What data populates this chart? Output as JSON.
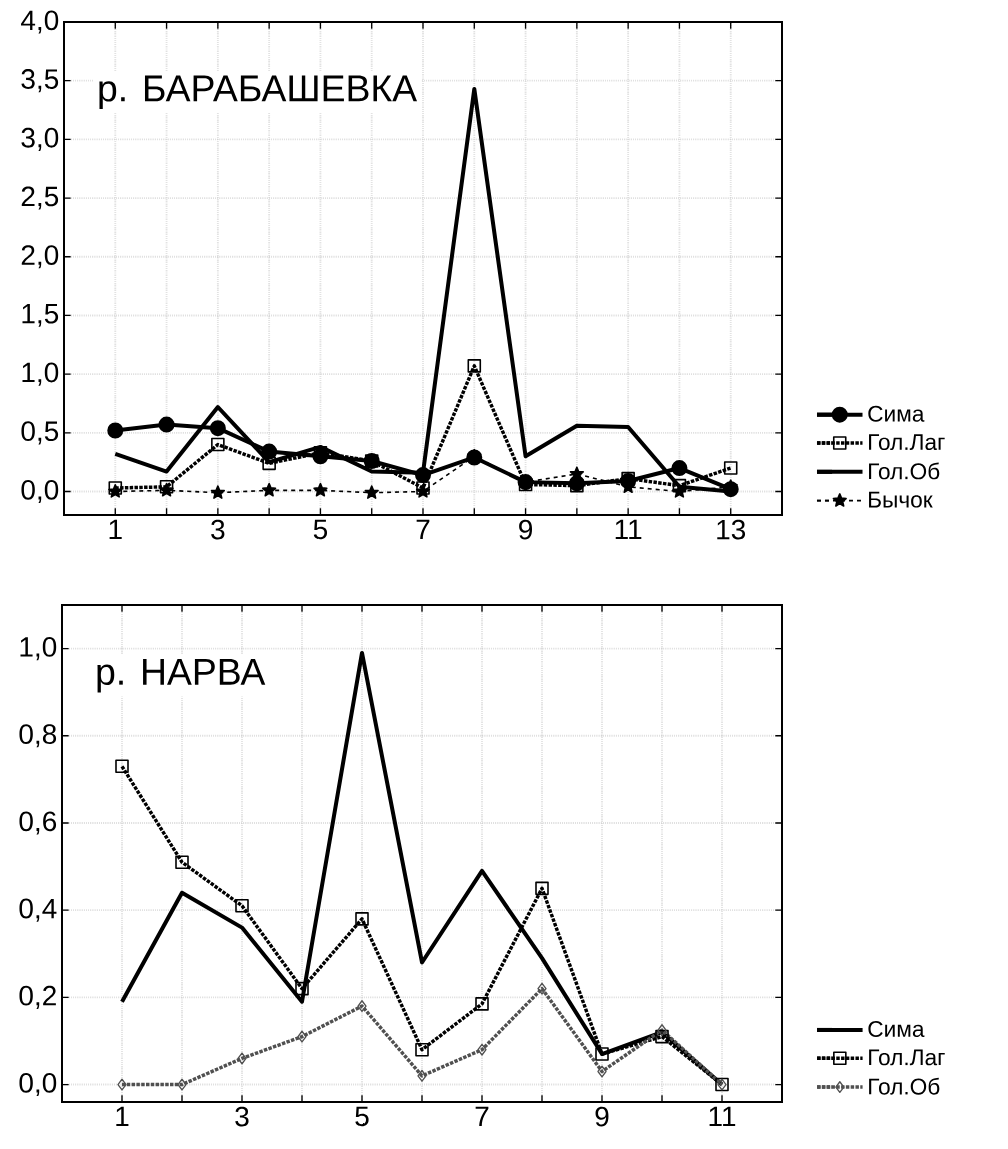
{
  "chart_data": [
    {
      "type": "line",
      "annotations": [
        "р. БАРАБАШЕВКА"
      ],
      "x": [
        1,
        2,
        3,
        4,
        5,
        6,
        7,
        8,
        9,
        10,
        11,
        12,
        13
      ],
      "xlim": [
        0,
        14
      ],
      "ylim": [
        -0.2,
        4.0
      ],
      "xticks": [
        1,
        {
          "value": 2,
          "label": null
        },
        3,
        {
          "value": 4,
          "label": null
        },
        5,
        {
          "value": 6,
          "label": null
        },
        7,
        {
          "value": 8,
          "label": null
        },
        9,
        {
          "value": 10,
          "label": null
        },
        11,
        {
          "value": 12,
          "label": null
        },
        13
      ],
      "yticks": [
        {
          "value": 0,
          "label": "0,0"
        },
        {
          "value": 0.5,
          "label": "0,5"
        },
        {
          "value": 1.0,
          "label": "1,0"
        },
        {
          "value": 1.5,
          "label": "1,5"
        },
        {
          "value": 2.0,
          "label": "2,0"
        },
        {
          "value": 2.5,
          "label": "2,5"
        },
        {
          "value": 3.0,
          "label": "3,0"
        },
        {
          "value": 3.5,
          "label": "3,5"
        },
        {
          "value": 4.0,
          "label": "4,0"
        }
      ],
      "grid": true,
      "legend": "bottom right",
      "series": [
        {
          "name": "Сима",
          "color": "#000000",
          "marker": "circle",
          "line_style": "solid",
          "values": [
            0.52,
            0.57,
            0.54,
            0.34,
            0.3,
            0.26,
            0.14,
            0.29,
            0.08,
            0.07,
            0.09,
            0.2,
            0.02
          ]
        },
        {
          "name": "Гол.Лаг",
          "color": "#000000",
          "marker": "square",
          "line_style": "dotted",
          "values": [
            0.03,
            0.04,
            0.4,
            0.24,
            0.33,
            0.26,
            0.03,
            1.07,
            0.06,
            0.05,
            0.11,
            0.05,
            0.2
          ]
        },
        {
          "name": "Гол.Об",
          "color": "#000000",
          "marker": "none",
          "line_style": "solid",
          "values": [
            0.32,
            0.17,
            0.72,
            0.25,
            0.38,
            0.17,
            0.16,
            3.43,
            0.3,
            0.56,
            0.55,
            0.04,
            0.0
          ]
        },
        {
          "name": "Бычок",
          "color": "#000000",
          "marker": "star",
          "line_style": "dashed",
          "values": [
            0.0,
            0.01,
            -0.01,
            0.01,
            0.01,
            -0.01,
            0.0,
            0.3,
            0.08,
            0.15,
            0.04,
            0.0,
            0.04
          ]
        }
      ]
    },
    {
      "type": "line",
      "annotations": [
        "р. НАРВА"
      ],
      "x": [
        1,
        2,
        3,
        4,
        5,
        6,
        7,
        8,
        9,
        10,
        11
      ],
      "xlim": [
        0,
        12
      ],
      "ylim": [
        -0.04,
        1.1
      ],
      "xticks": [
        1,
        {
          "value": 2,
          "label": null
        },
        3,
        {
          "value": 4,
          "label": null
        },
        5,
        {
          "value": 6,
          "label": null
        },
        7,
        {
          "value": 8,
          "label": null
        },
        9,
        {
          "value": 10,
          "label": null
        },
        11
      ],
      "yticks": [
        {
          "value": 0,
          "label": "0,0"
        },
        {
          "value": 0.2,
          "label": "0,2"
        },
        {
          "value": 0.4,
          "label": "0,4"
        },
        {
          "value": 0.6,
          "label": "0,6"
        },
        {
          "value": 0.8,
          "label": "0,8"
        },
        {
          "value": 1.0,
          "label": "1,0"
        }
      ],
      "grid": true,
      "legend": "bottom right",
      "series": [
        {
          "name": "Сима",
          "color": "#000000",
          "marker": "none",
          "line_style": "solid",
          "values": [
            0.19,
            0.44,
            0.36,
            0.19,
            0.99,
            0.28,
            0.49,
            0.29,
            0.07,
            0.12,
            0.0
          ]
        },
        {
          "name": "Гол.Лаг",
          "color": "#000000",
          "marker": "square",
          "line_style": "dotted",
          "values": [
            0.73,
            0.51,
            0.41,
            0.22,
            0.38,
            0.08,
            0.185,
            0.45,
            0.07,
            0.11,
            0.0
          ]
        },
        {
          "name": "Гол.Об",
          "color": "#505050",
          "marker": "diamond",
          "line_style": "dotted",
          "values": [
            0.0,
            0.0,
            0.06,
            0.11,
            0.18,
            0.02,
            0.08,
            0.22,
            0.03,
            0.125,
            0.0
          ]
        }
      ]
    }
  ]
}
